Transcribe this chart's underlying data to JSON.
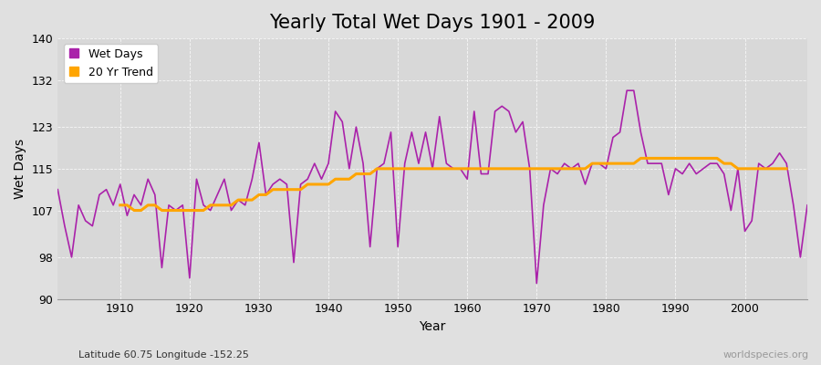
{
  "title": "Yearly Total Wet Days 1901 - 2009",
  "xlabel": "Year",
  "ylabel": "Wet Days",
  "subtitle": "Latitude 60.75 Longitude -152.25",
  "watermark": "worldspecies.org",
  "ylim": [
    90,
    140
  ],
  "yticks": [
    90,
    98,
    107,
    115,
    123,
    132,
    140
  ],
  "background_color": "#e0e0e0",
  "plot_bg_color": "#d8d8d8",
  "wet_days_color": "#aa22aa",
  "trend_color": "#ffa500",
  "xticks": [
    1910,
    1920,
    1930,
    1940,
    1950,
    1960,
    1970,
    1980,
    1990,
    2000
  ],
  "xlim": [
    1901,
    2009
  ],
  "years": [
    1901,
    1902,
    1903,
    1904,
    1905,
    1906,
    1907,
    1908,
    1909,
    1910,
    1911,
    1912,
    1913,
    1914,
    1915,
    1916,
    1917,
    1918,
    1919,
    1920,
    1921,
    1922,
    1923,
    1924,
    1925,
    1926,
    1927,
    1928,
    1929,
    1930,
    1931,
    1932,
    1933,
    1934,
    1935,
    1936,
    1937,
    1938,
    1939,
    1940,
    1941,
    1942,
    1943,
    1944,
    1945,
    1946,
    1947,
    1948,
    1949,
    1950,
    1951,
    1952,
    1953,
    1954,
    1955,
    1956,
    1957,
    1958,
    1959,
    1960,
    1961,
    1962,
    1963,
    1964,
    1965,
    1966,
    1967,
    1968,
    1969,
    1970,
    1971,
    1972,
    1973,
    1974,
    1975,
    1976,
    1977,
    1978,
    1979,
    1980,
    1981,
    1982,
    1983,
    1984,
    1985,
    1986,
    1987,
    1988,
    1989,
    1990,
    1991,
    1992,
    1993,
    1994,
    1995,
    1996,
    1997,
    1998,
    1999,
    2000,
    2001,
    2002,
    2003,
    2004,
    2005,
    2006,
    2007,
    2008,
    2009
  ],
  "wet_days": [
    111,
    104,
    98,
    108,
    105,
    104,
    110,
    111,
    108,
    112,
    106,
    110,
    108,
    113,
    110,
    96,
    108,
    107,
    108,
    94,
    113,
    108,
    107,
    110,
    113,
    107,
    109,
    108,
    113,
    120,
    110,
    112,
    113,
    112,
    97,
    112,
    113,
    116,
    113,
    116,
    126,
    124,
    115,
    123,
    116,
    100,
    115,
    116,
    122,
    100,
    116,
    122,
    116,
    122,
    115,
    125,
    116,
    115,
    115,
    113,
    126,
    114,
    114,
    126,
    127,
    126,
    122,
    124,
    115,
    93,
    108,
    115,
    114,
    116,
    115,
    116,
    112,
    116,
    116,
    115,
    121,
    122,
    130,
    130,
    122,
    116,
    116,
    116,
    110,
    115,
    114,
    116,
    114,
    115,
    116,
    116,
    114,
    107,
    115,
    103,
    105,
    116,
    115,
    116,
    118,
    116,
    108,
    98,
    108
  ],
  "trend": [
    null,
    null,
    null,
    null,
    null,
    null,
    null,
    null,
    null,
    108,
    108,
    107,
    107,
    108,
    108,
    107,
    107,
    107,
    107,
    107,
    107,
    107,
    108,
    108,
    108,
    108,
    109,
    109,
    109,
    110,
    110,
    111,
    111,
    111,
    111,
    111,
    112,
    112,
    112,
    112,
    113,
    113,
    113,
    114,
    114,
    114,
    115,
    115,
    115,
    115,
    115,
    115,
    115,
    115,
    115,
    115,
    115,
    115,
    115,
    115,
    115,
    115,
    115,
    115,
    115,
    115,
    115,
    115,
    115,
    115,
    115,
    115,
    115,
    115,
    115,
    115,
    115,
    116,
    116,
    116,
    116,
    116,
    116,
    116,
    117,
    117,
    117,
    117,
    117,
    117,
    117,
    117,
    117,
    117,
    117,
    117,
    116,
    116,
    115,
    115,
    115,
    115,
    115,
    115,
    115,
    115,
    null
  ]
}
